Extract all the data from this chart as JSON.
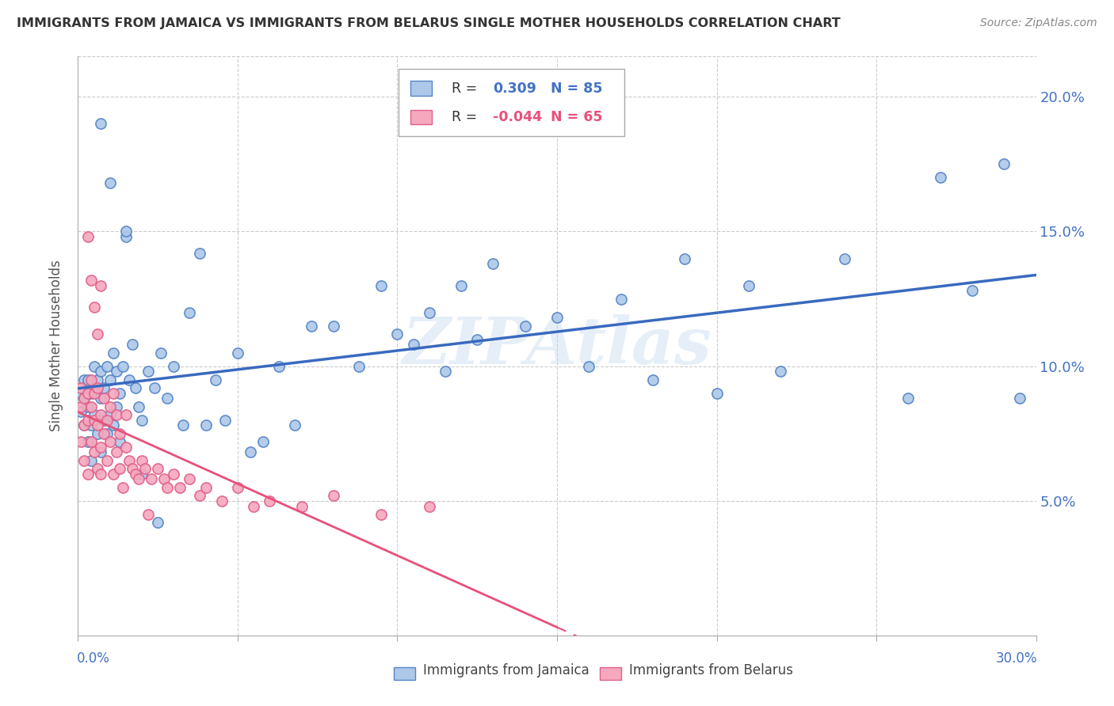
{
  "title": "IMMIGRANTS FROM JAMAICA VS IMMIGRANTS FROM BELARUS SINGLE MOTHER HOUSEHOLDS CORRELATION CHART",
  "source": "Source: ZipAtlas.com",
  "ylabel": "Single Mother Households",
  "ylabel_right_ticks": [
    "20.0%",
    "15.0%",
    "10.0%",
    "5.0%"
  ],
  "ylabel_right_values": [
    0.2,
    0.15,
    0.1,
    0.05
  ],
  "color_jamaica": "#adc8e8",
  "color_jamaica_edge": "#5585c5",
  "color_belarus": "#f5a8be",
  "color_belarus_edge": "#e0608a",
  "color_jamaica_line": "#3a6abf",
  "color_belarus_line": "#e8507a",
  "color_axis_text": "#4472c4",
  "background_color": "#ffffff",
  "watermark": "ZIPAtlas",
  "xlim": [
    0.0,
    0.3
  ],
  "ylim": [
    0.0,
    0.215
  ],
  "jamaica_scatter_x": [
    0.001,
    0.001,
    0.002,
    0.002,
    0.002,
    0.003,
    0.003,
    0.003,
    0.004,
    0.004,
    0.004,
    0.005,
    0.005,
    0.005,
    0.006,
    0.006,
    0.007,
    0.007,
    0.007,
    0.008,
    0.008,
    0.009,
    0.009,
    0.01,
    0.01,
    0.011,
    0.011,
    0.012,
    0.012,
    0.013,
    0.013,
    0.014,
    0.015,
    0.016,
    0.017,
    0.018,
    0.019,
    0.02,
    0.022,
    0.024,
    0.026,
    0.028,
    0.03,
    0.033,
    0.035,
    0.038,
    0.04,
    0.043,
    0.046,
    0.05,
    0.054,
    0.058,
    0.063,
    0.068,
    0.073,
    0.08,
    0.088,
    0.095,
    0.1,
    0.105,
    0.11,
    0.115,
    0.12,
    0.125,
    0.13,
    0.14,
    0.15,
    0.16,
    0.17,
    0.18,
    0.19,
    0.2,
    0.21,
    0.22,
    0.24,
    0.26,
    0.27,
    0.28,
    0.29,
    0.295,
    0.007,
    0.01,
    0.015,
    0.02,
    0.025
  ],
  "jamaica_scatter_y": [
    0.083,
    0.09,
    0.078,
    0.088,
    0.095,
    0.072,
    0.085,
    0.095,
    0.078,
    0.09,
    0.065,
    0.082,
    0.092,
    0.1,
    0.075,
    0.095,
    0.068,
    0.088,
    0.098,
    0.08,
    0.092,
    0.075,
    0.1,
    0.082,
    0.095,
    0.078,
    0.105,
    0.085,
    0.098,
    0.09,
    0.072,
    0.1,
    0.148,
    0.095,
    0.108,
    0.092,
    0.085,
    0.08,
    0.098,
    0.092,
    0.105,
    0.088,
    0.1,
    0.078,
    0.12,
    0.142,
    0.078,
    0.095,
    0.08,
    0.105,
    0.068,
    0.072,
    0.1,
    0.078,
    0.115,
    0.115,
    0.1,
    0.13,
    0.112,
    0.108,
    0.12,
    0.098,
    0.13,
    0.11,
    0.138,
    0.115,
    0.118,
    0.1,
    0.125,
    0.095,
    0.14,
    0.09,
    0.13,
    0.098,
    0.14,
    0.088,
    0.17,
    0.128,
    0.175,
    0.088,
    0.19,
    0.168,
    0.15,
    0.06,
    0.042
  ],
  "belarus_scatter_x": [
    0.001,
    0.001,
    0.001,
    0.002,
    0.002,
    0.002,
    0.003,
    0.003,
    0.003,
    0.004,
    0.004,
    0.004,
    0.005,
    0.005,
    0.005,
    0.006,
    0.006,
    0.006,
    0.007,
    0.007,
    0.007,
    0.008,
    0.008,
    0.009,
    0.009,
    0.01,
    0.01,
    0.011,
    0.011,
    0.012,
    0.012,
    0.013,
    0.013,
    0.014,
    0.015,
    0.015,
    0.016,
    0.017,
    0.018,
    0.019,
    0.02,
    0.021,
    0.022,
    0.023,
    0.025,
    0.027,
    0.028,
    0.03,
    0.032,
    0.035,
    0.038,
    0.04,
    0.045,
    0.05,
    0.055,
    0.06,
    0.07,
    0.08,
    0.095,
    0.11,
    0.003,
    0.004,
    0.005,
    0.006,
    0.007
  ],
  "belarus_scatter_y": [
    0.085,
    0.072,
    0.092,
    0.078,
    0.088,
    0.065,
    0.08,
    0.09,
    0.06,
    0.085,
    0.072,
    0.095,
    0.068,
    0.08,
    0.09,
    0.062,
    0.078,
    0.092,
    0.07,
    0.082,
    0.06,
    0.075,
    0.088,
    0.065,
    0.08,
    0.072,
    0.085,
    0.06,
    0.09,
    0.068,
    0.082,
    0.062,
    0.075,
    0.055,
    0.07,
    0.082,
    0.065,
    0.062,
    0.06,
    0.058,
    0.065,
    0.062,
    0.045,
    0.058,
    0.062,
    0.058,
    0.055,
    0.06,
    0.055,
    0.058,
    0.052,
    0.055,
    0.05,
    0.055,
    0.048,
    0.05,
    0.048,
    0.052,
    0.045,
    0.048,
    0.148,
    0.132,
    0.122,
    0.112,
    0.13
  ]
}
